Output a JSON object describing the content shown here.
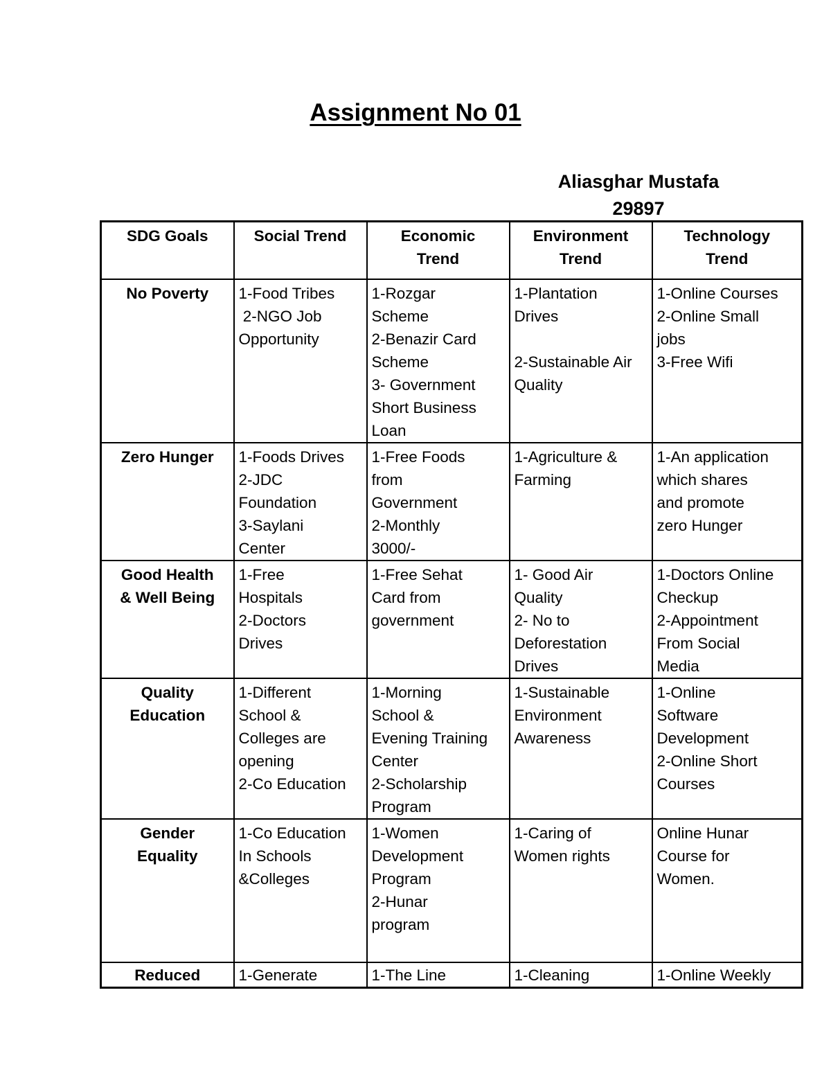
{
  "page": {
    "title": "Assignment No 01",
    "student_name": "Aliasghar Mustafa",
    "student_id": "29897",
    "text_color": "#000000",
    "background_color": "#ffffff"
  },
  "table": {
    "headers": [
      "SDG Goals",
      "Social Trend",
      "Economic\nTrend",
      "Environment\nTrend",
      "Technology\nTrend"
    ],
    "rows": [
      {
        "goal": "No Poverty",
        "social": "1-Food Tribes\n 2-NGO Job\nOpportunity",
        "economic": "1-Rozgar\nScheme\n2-Benazir Card\nScheme\n3- Government\nShort Business\nLoan",
        "environment": "1-Plantation\nDrives\n\n2-Sustainable Air\nQuality",
        "technology": "1-Online Courses\n2-Online Small\njobs\n3-Free Wifi"
      },
      {
        "goal": "Zero Hunger",
        "social": "1-Foods Drives\n2-JDC\nFoundation\n3-Saylani\nCenter",
        "economic": "1-Free Foods\nfrom\nGovernment\n2-Monthly\n3000/-",
        "environment": "1-Agriculture &\nFarming",
        "technology": "1-An application\nwhich shares\nand promote\nzero Hunger"
      },
      {
        "goal": "Good Health\n& Well Being",
        "social": "1-Free\nHospitals\n2-Doctors\nDrives",
        "economic": "1-Free Sehat\nCard from\ngovernment",
        "environment": "1- Good Air\nQuality\n2- No to\nDeforestation\nDrives",
        "technology": "1-Doctors Online\nCheckup\n2-Appointment\nFrom Social\nMedia"
      },
      {
        "goal": "Quality\nEducation",
        "social": "1-Different\nSchool &\nColleges are\nopening\n2-Co Education",
        "economic": "1-Morning\nSchool &\nEvening Training\nCenter\n2-Scholarship\nProgram",
        "environment": "1-Sustainable\nEnvironment\nAwareness",
        "technology": "1-Online\nSoftware\nDevelopment\n2-Online Short\nCourses"
      },
      {
        "goal": "Gender\nEquality",
        "social": "1-Co Education\nIn Schools\n&Colleges",
        "economic": "1-Women\nDevelopment\nProgram\n2-Hunar\nprogram",
        "environment": "1-Caring of\nWomen rights",
        "technology": "Online Hunar\nCourse for\nWomen."
      },
      {
        "goal": "Reduced",
        "social": "1-Generate",
        "economic": "1-The Line",
        "environment": "1-Cleaning",
        "technology": "1-Online Weekly"
      }
    ]
  }
}
